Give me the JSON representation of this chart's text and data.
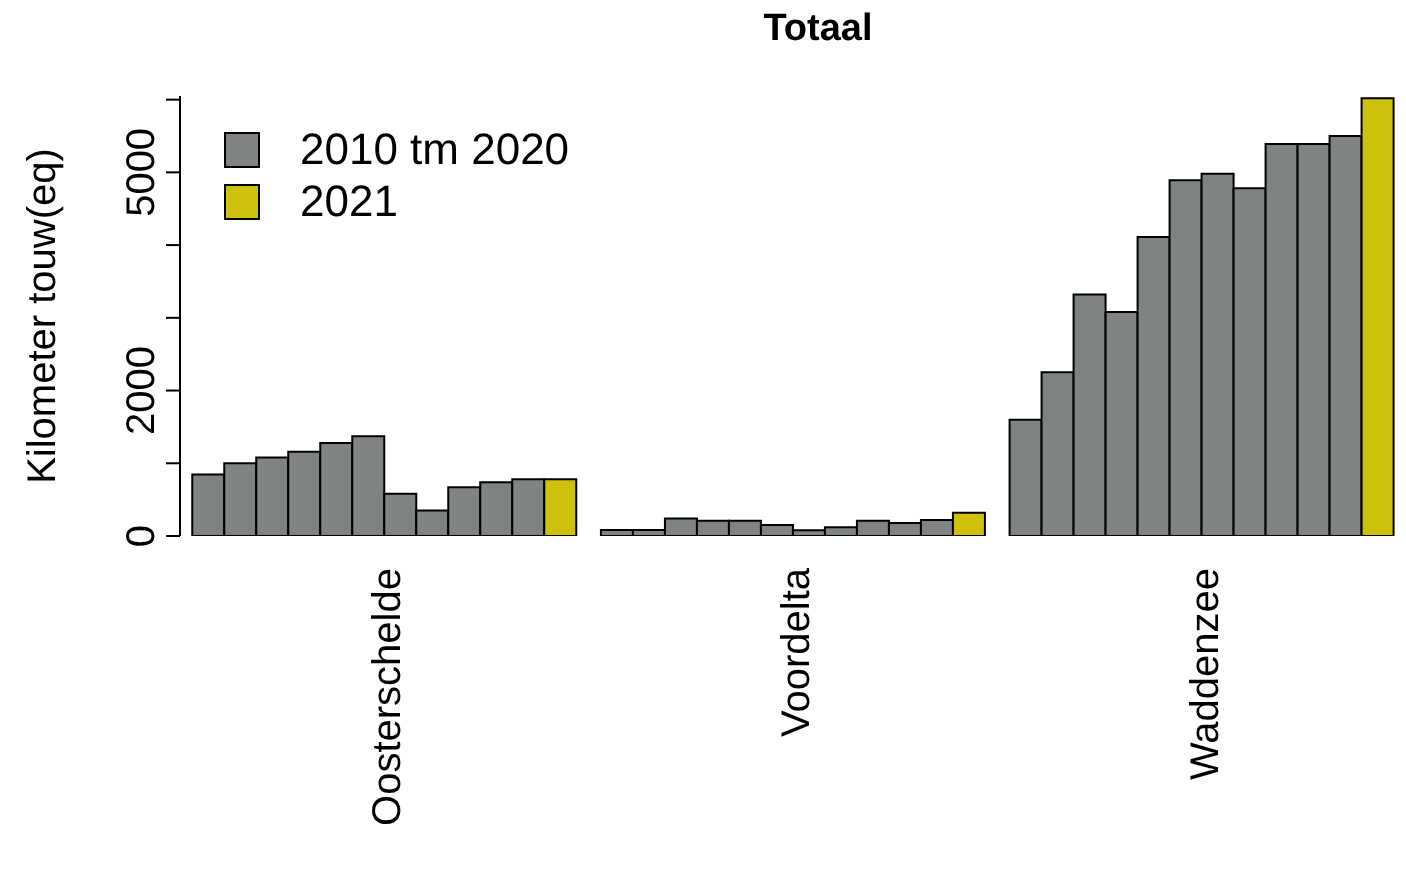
{
  "chart_data": {
    "type": "bar",
    "title": "Totaal",
    "ylabel": "Kilometer touw(eq)",
    "categories": [
      "Oosterschelde",
      "Voordelta",
      "Waddenzee"
    ],
    "series": [
      {
        "name": "2010 tm 2020",
        "color": "#7f8383",
        "values": [
          845,
          82,
          1600
        ]
      },
      {
        "color": "#7f8383",
        "values": [
          1000,
          82,
          2250
        ]
      },
      {
        "color": "#7f8383",
        "values": [
          1080,
          240,
          3320
        ]
      },
      {
        "color": "#7f8383",
        "values": [
          1160,
          210,
          3080
        ]
      },
      {
        "color": "#7f8383",
        "values": [
          1280,
          210,
          4110
        ]
      },
      {
        "color": "#7f8383",
        "values": [
          1370,
          150,
          4890
        ]
      },
      {
        "color": "#7f8383",
        "values": [
          580,
          80,
          4980
        ]
      },
      {
        "color": "#7f8383",
        "values": [
          350,
          120,
          4780
        ]
      },
      {
        "color": "#7f8383",
        "values": [
          670,
          210,
          5390
        ]
      },
      {
        "color": "#7f8383",
        "values": [
          740,
          180,
          5390
        ]
      },
      {
        "color": "#7f8383",
        "values": [
          780,
          220,
          5500
        ]
      },
      {
        "name": "2021",
        "color": "#cdc10c",
        "values": [
          780,
          320,
          6020
        ]
      }
    ],
    "ylim": [
      0,
      6050
    ],
    "yticks": [
      0,
      {
        "value": 1000,
        "label": null
      },
      2000,
      {
        "value": 3000,
        "label": null
      },
      {
        "value": 4000,
        "label": null
      },
      5000,
      {
        "value": 6000,
        "label": null
      }
    ],
    "grid": false,
    "legend": "top left"
  }
}
